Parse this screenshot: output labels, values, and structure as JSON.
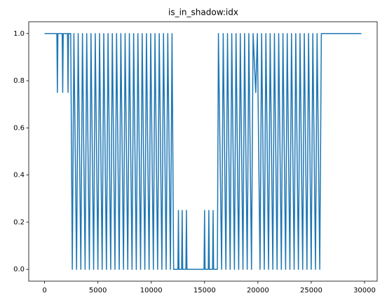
{
  "chart_data": {
    "type": "line",
    "title": "is_in_shadow:idx",
    "x": [
      0,
      1150,
      1200,
      1250,
      1650,
      1700,
      1750,
      2150,
      2200,
      2250,
      2450,
      2600,
      2750,
      3000,
      3150,
      3400,
      3550,
      3800,
      3950,
      4200,
      4350,
      4600,
      4750,
      5000,
      5150,
      5400,
      5550,
      5800,
      5950,
      6200,
      6350,
      6600,
      6750,
      7000,
      7150,
      7400,
      7550,
      7800,
      7950,
      8200,
      8350,
      8600,
      8750,
      9000,
      9150,
      9400,
      9550,
      9800,
      9950,
      10200,
      10350,
      10600,
      10750,
      11000,
      11150,
      11400,
      11550,
      11800,
      11950,
      12100,
      12500,
      12550,
      12600,
      12850,
      12900,
      12950,
      13250,
      13300,
      13350,
      14950,
      15000,
      15050,
      15350,
      15400,
      15450,
      15750,
      15800,
      15850,
      16200,
      16300,
      16600,
      16750,
      17000,
      17150,
      17400,
      17550,
      17800,
      17950,
      18200,
      18350,
      18600,
      18750,
      19000,
      19150,
      19400,
      19550,
      19800,
      19950,
      20200,
      20350,
      20600,
      20750,
      21000,
      21150,
      21400,
      21550,
      21800,
      21950,
      22200,
      22350,
      22600,
      22750,
      23000,
      23150,
      23400,
      23550,
      23800,
      23950,
      24200,
      24350,
      24600,
      24750,
      25000,
      25150,
      25400,
      25550,
      25800,
      25950,
      29700
    ],
    "series": [
      {
        "name": "is_in_shadow",
        "color": "#1f77b4",
        "values": [
          1,
          1,
          0.75,
          1,
          1,
          0.75,
          1,
          1,
          0.75,
          1,
          1,
          0,
          1,
          0,
          1,
          0,
          1,
          0,
          1,
          0,
          1,
          0,
          1,
          0,
          1,
          0,
          1,
          0,
          1,
          0,
          1,
          0,
          1,
          0,
          1,
          0,
          1,
          0,
          1,
          0,
          1,
          0,
          1,
          0,
          1,
          0,
          1,
          0,
          1,
          0,
          1,
          0,
          1,
          0,
          1,
          0,
          1,
          0,
          1,
          0,
          0,
          0.25,
          0,
          0,
          0.25,
          0,
          0,
          0.25,
          0,
          0,
          0.25,
          0,
          0,
          0.25,
          0,
          0,
          0.25,
          0,
          0,
          1,
          0,
          1,
          0,
          1,
          0,
          1,
          0,
          1,
          0,
          1,
          0,
          1,
          0,
          1,
          0,
          1,
          0.75,
          1,
          0,
          1,
          0,
          1,
          0,
          1,
          0,
          1,
          0,
          1,
          0,
          1,
          0,
          1,
          0,
          1,
          0,
          1,
          0,
          1,
          0,
          1,
          0,
          1,
          0,
          1,
          0,
          1,
          0,
          1,
          1
        ]
      }
    ],
    "xlim": [
      -1485,
      31185
    ],
    "xticks": [
      0,
      5000,
      10000,
      15000,
      20000,
      25000,
      30000
    ],
    "ylim": [
      -0.05,
      1.05
    ],
    "yticks": [
      {
        "value": 0,
        "label": "0.0"
      },
      0.2,
      0.4,
      0.6,
      0.8,
      {
        "value": 1,
        "label": "1.0"
      }
    ],
    "grid": false
  }
}
